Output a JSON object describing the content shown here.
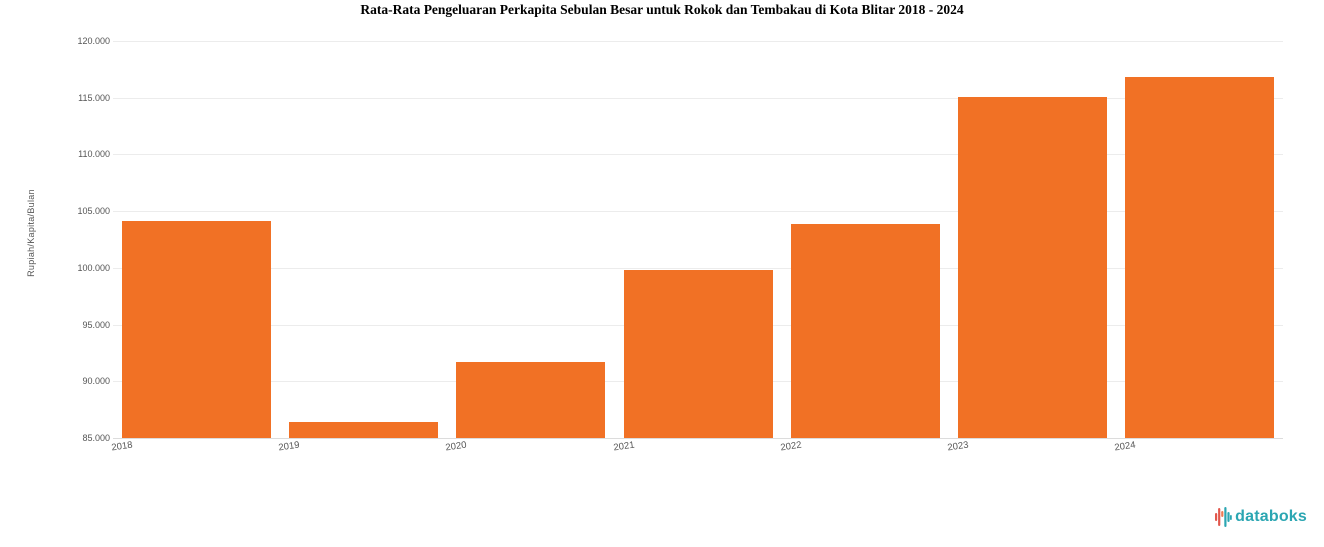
{
  "chart_data": {
    "type": "bar",
    "title": "Rata-Rata Pengeluaran Perkapita Sebulan Besar untuk Rokok dan Tembakau di Kota Blitar 2018 - 2024",
    "categories": [
      "2018",
      "2019",
      "2020",
      "2021",
      "2022",
      "2023",
      "2024"
    ],
    "values": [
      104100,
      86400,
      91700,
      99800,
      103900,
      115100,
      116800
    ],
    "xlabel": "",
    "ylabel": "Rupiah/Kapita/Bulan",
    "ylim": [
      85000,
      120000
    ],
    "ytick_step": 5000,
    "yticks": [
      "85.000",
      "90.000",
      "95.000",
      "100.000",
      "105.000",
      "110.000",
      "115.000",
      "120.000"
    ],
    "grid": true,
    "legend": false,
    "bar_color": "#F17125",
    "grid_color": "#ececec",
    "tick_label_color": "#555555"
  },
  "branding": {
    "logo_text": "databoks",
    "logo_teal": "#2BA6B2",
    "logo_red": "#E2574C",
    "logo_coral": "#EF7B54"
  }
}
